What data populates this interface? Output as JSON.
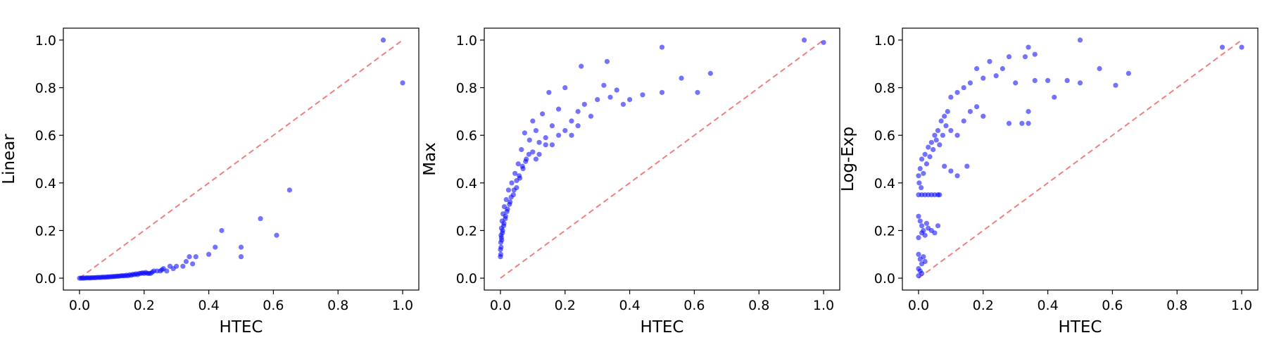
{
  "chart_data": [
    {
      "type": "scatter",
      "xlabel": "HTEC",
      "ylabel": "Linear",
      "xlim": [
        0.0,
        1.0
      ],
      "ylim": [
        0.0,
        1.0
      ],
      "xticks": [
        "0.0",
        "0.2",
        "0.4",
        "0.6",
        "0.8",
        "1.0"
      ],
      "yticks": [
        "0.0",
        "0.2",
        "0.4",
        "0.6",
        "0.8",
        "1.0"
      ],
      "grid": false,
      "point_color": "#0000ff",
      "reference_line": {
        "style": "dashed",
        "color": "#f08080",
        "from": [
          0,
          0
        ],
        "to": [
          1,
          1
        ]
      },
      "points": [
        [
          0.94,
          1.0
        ],
        [
          1.0,
          0.82
        ],
        [
          0.65,
          0.37
        ],
        [
          0.56,
          0.25
        ],
        [
          0.61,
          0.18
        ],
        [
          0.44,
          0.2
        ],
        [
          0.5,
          0.13
        ],
        [
          0.5,
          0.09
        ],
        [
          0.42,
          0.13
        ],
        [
          0.4,
          0.1
        ],
        [
          0.36,
          0.09
        ],
        [
          0.34,
          0.09
        ],
        [
          0.33,
          0.07
        ],
        [
          0.35,
          0.06
        ],
        [
          0.32,
          0.05
        ],
        [
          0.3,
          0.05
        ],
        [
          0.28,
          0.05
        ],
        [
          0.26,
          0.04
        ],
        [
          0.27,
          0.03
        ],
        [
          0.25,
          0.03
        ],
        [
          0.23,
          0.03
        ],
        [
          0.22,
          0.02
        ],
        [
          0.21,
          0.02
        ],
        [
          0.2,
          0.02
        ],
        [
          0.19,
          0.02
        ],
        [
          0.18,
          0.015
        ],
        [
          0.17,
          0.015
        ],
        [
          0.16,
          0.012
        ],
        [
          0.15,
          0.01
        ],
        [
          0.14,
          0.01
        ],
        [
          0.13,
          0.01
        ],
        [
          0.12,
          0.008
        ],
        [
          0.11,
          0.007
        ],
        [
          0.1,
          0.006
        ],
        [
          0.09,
          0.005
        ],
        [
          0.08,
          0.004
        ],
        [
          0.07,
          0.004
        ],
        [
          0.06,
          0.003
        ],
        [
          0.05,
          0.002
        ],
        [
          0.04,
          0.002
        ],
        [
          0.03,
          0.001
        ],
        [
          0.02,
          0.001
        ],
        [
          0.01,
          0.0
        ],
        [
          0.0,
          0.0
        ],
        [
          0.005,
          0.0
        ],
        [
          0.015,
          0.0
        ],
        [
          0.025,
          0.001
        ],
        [
          0.035,
          0.001
        ],
        [
          0.045,
          0.002
        ],
        [
          0.055,
          0.003
        ],
        [
          0.065,
          0.003
        ],
        [
          0.075,
          0.004
        ],
        [
          0.085,
          0.005
        ],
        [
          0.095,
          0.006
        ],
        [
          0.105,
          0.007
        ],
        [
          0.115,
          0.008
        ],
        [
          0.125,
          0.009
        ],
        [
          0.135,
          0.01
        ],
        [
          0.145,
          0.012
        ],
        [
          0.155,
          0.014
        ],
        [
          0.165,
          0.016
        ],
        [
          0.175,
          0.018
        ],
        [
          0.185,
          0.02
        ],
        [
          0.195,
          0.022
        ],
        [
          0.205,
          0.024
        ],
        [
          0.215,
          0.02
        ],
        [
          0.225,
          0.025
        ],
        [
          0.24,
          0.03
        ],
        [
          0.255,
          0.035
        ],
        [
          0.29,
          0.04
        ]
      ]
    },
    {
      "type": "scatter",
      "xlabel": "HTEC",
      "ylabel": "Max",
      "xlim": [
        0.0,
        1.0
      ],
      "ylim": [
        0.0,
        1.0
      ],
      "xticks": [
        "0.0",
        "0.2",
        "0.4",
        "0.6",
        "0.8",
        "1.0"
      ],
      "yticks": [
        "0.0",
        "0.2",
        "0.4",
        "0.6",
        "0.8",
        "1.0"
      ],
      "grid": false,
      "point_color": "#0000ff",
      "reference_line": {
        "style": "dashed",
        "color": "#f08080",
        "from": [
          0,
          0
        ],
        "to": [
          1,
          1
        ]
      },
      "points": [
        [
          0.94,
          1.0
        ],
        [
          1.0,
          0.99
        ],
        [
          0.5,
          0.97
        ],
        [
          0.33,
          0.91
        ],
        [
          0.25,
          0.89
        ],
        [
          0.65,
          0.86
        ],
        [
          0.56,
          0.84
        ],
        [
          0.61,
          0.78
        ],
        [
          0.5,
          0.78
        ],
        [
          0.44,
          0.77
        ],
        [
          0.4,
          0.75
        ],
        [
          0.38,
          0.73
        ],
        [
          0.36,
          0.79
        ],
        [
          0.34,
          0.76
        ],
        [
          0.32,
          0.81
        ],
        [
          0.3,
          0.75
        ],
        [
          0.28,
          0.68
        ],
        [
          0.26,
          0.73
        ],
        [
          0.24,
          0.7
        ],
        [
          0.22,
          0.66
        ],
        [
          0.2,
          0.8
        ],
        [
          0.18,
          0.71
        ],
        [
          0.16,
          0.64
        ],
        [
          0.15,
          0.78
        ],
        [
          0.14,
          0.56
        ],
        [
          0.13,
          0.69
        ],
        [
          0.12,
          0.52
        ],
        [
          0.11,
          0.62
        ],
        [
          0.1,
          0.66
        ],
        [
          0.09,
          0.58
        ],
        [
          0.08,
          0.5
        ],
        [
          0.075,
          0.61
        ],
        [
          0.07,
          0.46
        ],
        [
          0.065,
          0.54
        ],
        [
          0.06,
          0.42
        ],
        [
          0.055,
          0.48
        ],
        [
          0.05,
          0.38
        ],
        [
          0.045,
          0.44
        ],
        [
          0.04,
          0.35
        ],
        [
          0.035,
          0.4
        ],
        [
          0.03,
          0.32
        ],
        [
          0.025,
          0.37
        ],
        [
          0.02,
          0.28
        ],
        [
          0.018,
          0.33
        ],
        [
          0.015,
          0.25
        ],
        [
          0.012,
          0.3
        ],
        [
          0.01,
          0.22
        ],
        [
          0.008,
          0.27
        ],
        [
          0.006,
          0.19
        ],
        [
          0.005,
          0.24
        ],
        [
          0.004,
          0.16
        ],
        [
          0.003,
          0.21
        ],
        [
          0.002,
          0.13
        ],
        [
          0.002,
          0.18
        ],
        [
          0.001,
          0.1
        ],
        [
          0.0,
          0.09
        ],
        [
          0.0,
          0.12
        ],
        [
          0.001,
          0.15
        ],
        [
          0.003,
          0.17
        ],
        [
          0.007,
          0.2
        ],
        [
          0.011,
          0.23
        ],
        [
          0.016,
          0.26
        ],
        [
          0.022,
          0.29
        ],
        [
          0.028,
          0.31
        ],
        [
          0.033,
          0.34
        ],
        [
          0.042,
          0.37
        ],
        [
          0.05,
          0.41
        ],
        [
          0.058,
          0.43
        ],
        [
          0.068,
          0.47
        ],
        [
          0.078,
          0.49
        ],
        [
          0.088,
          0.52
        ],
        [
          0.1,
          0.53
        ],
        [
          0.11,
          0.5
        ],
        [
          0.12,
          0.57
        ],
        [
          0.14,
          0.59
        ],
        [
          0.16,
          0.56
        ],
        [
          0.18,
          0.6
        ],
        [
          0.2,
          0.62
        ],
        [
          0.22,
          0.6
        ],
        [
          0.24,
          0.64
        ]
      ]
    },
    {
      "type": "scatter",
      "xlabel": "HTEC",
      "ylabel": "Log-Exp",
      "xlim": [
        0.0,
        1.0
      ],
      "ylim": [
        0.0,
        1.0
      ],
      "xticks": [
        "0.0",
        "0.2",
        "0.4",
        "0.6",
        "0.8",
        "1.0"
      ],
      "yticks": [
        "0.0",
        "0.2",
        "0.4",
        "0.6",
        "0.8",
        "1.0"
      ],
      "grid": false,
      "point_color": "#0000ff",
      "reference_line": {
        "style": "dashed",
        "color": "#f08080",
        "from": [
          0,
          0
        ],
        "to": [
          1,
          1
        ]
      },
      "points": [
        [
          0.5,
          1.0
        ],
        [
          0.94,
          0.97
        ],
        [
          1.0,
          0.97
        ],
        [
          0.34,
          0.97
        ],
        [
          0.28,
          0.93
        ],
        [
          0.33,
          0.93
        ],
        [
          0.36,
          0.94
        ],
        [
          0.22,
          0.91
        ],
        [
          0.56,
          0.88
        ],
        [
          0.65,
          0.86
        ],
        [
          0.61,
          0.81
        ],
        [
          0.5,
          0.82
        ],
        [
          0.46,
          0.83
        ],
        [
          0.42,
          0.76
        ],
        [
          0.4,
          0.83
        ],
        [
          0.36,
          0.83
        ],
        [
          0.34,
          0.7
        ],
        [
          0.34,
          0.65
        ],
        [
          0.32,
          0.65
        ],
        [
          0.28,
          0.65
        ],
        [
          0.3,
          0.82
        ],
        [
          0.26,
          0.88
        ],
        [
          0.24,
          0.85
        ],
        [
          0.2,
          0.84
        ],
        [
          0.18,
          0.88
        ],
        [
          0.16,
          0.82
        ],
        [
          0.14,
          0.8
        ],
        [
          0.12,
          0.78
        ],
        [
          0.1,
          0.76
        ],
        [
          0.09,
          0.7
        ],
        [
          0.08,
          0.68
        ],
        [
          0.07,
          0.66
        ],
        [
          0.06,
          0.62
        ],
        [
          0.05,
          0.6
        ],
        [
          0.04,
          0.57
        ],
        [
          0.03,
          0.55
        ],
        [
          0.02,
          0.52
        ],
        [
          0.01,
          0.5
        ],
        [
          0.005,
          0.46
        ],
        [
          0.0,
          0.43
        ],
        [
          0.002,
          0.4
        ],
        [
          0.008,
          0.38
        ],
        [
          0.015,
          0.44
        ],
        [
          0.025,
          0.48
        ],
        [
          0.035,
          0.51
        ],
        [
          0.045,
          0.54
        ],
        [
          0.055,
          0.58
        ],
        [
          0.065,
          0.56
        ],
        [
          0.075,
          0.6
        ],
        [
          0.085,
          0.64
        ],
        [
          0.1,
          0.62
        ],
        [
          0.12,
          0.6
        ],
        [
          0.14,
          0.66
        ],
        [
          0.16,
          0.7
        ],
        [
          0.18,
          0.72
        ],
        [
          0.2,
          0.68
        ],
        [
          0.1,
          0.45
        ],
        [
          0.15,
          0.47
        ],
        [
          0.12,
          0.43
        ],
        [
          0.08,
          0.47
        ],
        [
          0.0,
          0.35
        ],
        [
          0.01,
          0.35
        ],
        [
          0.02,
          0.35
        ],
        [
          0.03,
          0.35
        ],
        [
          0.04,
          0.35
        ],
        [
          0.05,
          0.35
        ],
        [
          0.06,
          0.35
        ],
        [
          0.065,
          0.35
        ],
        [
          0.0,
          0.26
        ],
        [
          0.005,
          0.24
        ],
        [
          0.01,
          0.22
        ],
        [
          0.015,
          0.2
        ],
        [
          0.02,
          0.18
        ],
        [
          0.025,
          0.23
        ],
        [
          0.03,
          0.21
        ],
        [
          0.04,
          0.2
        ],
        [
          0.05,
          0.19
        ],
        [
          0.06,
          0.22
        ],
        [
          0.0,
          0.17
        ],
        [
          0.01,
          0.19
        ],
        [
          0.0,
          0.1
        ],
        [
          0.005,
          0.08
        ],
        [
          0.01,
          0.06
        ],
        [
          0.015,
          0.09
        ],
        [
          0.02,
          0.07
        ],
        [
          0.0,
          0.04
        ],
        [
          0.005,
          0.03
        ],
        [
          0.01,
          0.02
        ],
        [
          0.0,
          0.01
        ]
      ]
    }
  ]
}
